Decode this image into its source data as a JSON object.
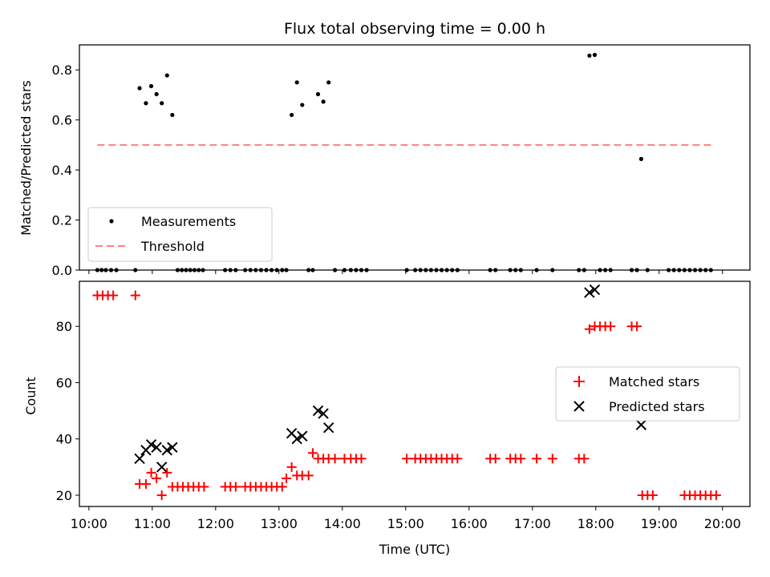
{
  "chart_data": [
    {
      "type": "scatter",
      "title": "Flux total observing time = 0.00 h",
      "ylabel": "Matched/Predicted stars",
      "ylim": [
        0,
        0.9
      ],
      "yticks": [
        "0.0",
        "0.2",
        "0.4",
        "0.6",
        "0.8"
      ],
      "xlim": [
        "09:51",
        "20:26"
      ],
      "legend": {
        "position": "lower-left",
        "entries": [
          "Measurements",
          "Threshold"
        ]
      },
      "grid": false,
      "threshold": {
        "name": "Threshold",
        "value": 0.5,
        "x_range": [
          "10:08",
          "19:53"
        ],
        "color": "#ff7f7f"
      },
      "series": [
        {
          "name": "Measurements",
          "color": "#000000",
          "points": [
            [
              "10:08",
              0
            ],
            [
              "10:12",
              0
            ],
            [
              "10:16",
              0
            ],
            [
              "10:21",
              0
            ],
            [
              "10:26",
              0
            ],
            [
              "10:44",
              0
            ],
            [
              "10:48",
              0.727
            ],
            [
              "10:54",
              0.667
            ],
            [
              "10:59",
              0.735
            ],
            [
              "11:04",
              0.703
            ],
            [
              "11:09",
              0.667
            ],
            [
              "11:14",
              0.778
            ],
            [
              "11:19",
              0.62
            ],
            [
              "11:24",
              0
            ],
            [
              "11:28",
              0
            ],
            [
              "11:32",
              0
            ],
            [
              "11:36",
              0
            ],
            [
              "11:40",
              0
            ],
            [
              "11:44",
              0
            ],
            [
              "11:48",
              0
            ],
            [
              "12:09",
              0
            ],
            [
              "12:14",
              0
            ],
            [
              "12:19",
              0
            ],
            [
              "12:28",
              0
            ],
            [
              "12:33",
              0
            ],
            [
              "12:38",
              0
            ],
            [
              "12:43",
              0
            ],
            [
              "12:48",
              0
            ],
            [
              "12:53",
              0
            ],
            [
              "12:58",
              0
            ],
            [
              "13:03",
              0
            ],
            [
              "13:07",
              0
            ],
            [
              "13:12",
              0.62
            ],
            [
              "13:17",
              0.75
            ],
            [
              "13:22",
              0.66
            ],
            [
              "13:28",
              0
            ],
            [
              "13:32",
              0
            ],
            [
              "13:37",
              0.703
            ],
            [
              "13:42",
              0.673
            ],
            [
              "13:47",
              0.75
            ],
            [
              "13:53",
              0
            ],
            [
              "14:02",
              0
            ],
            [
              "14:08",
              0
            ],
            [
              "14:13",
              0
            ],
            [
              "14:18",
              0
            ],
            [
              "14:23",
              0
            ],
            [
              "15:01",
              0
            ],
            [
              "15:09",
              0
            ],
            [
              "15:14",
              0
            ],
            [
              "15:19",
              0
            ],
            [
              "15:24",
              0
            ],
            [
              "15:29",
              0
            ],
            [
              "15:34",
              0
            ],
            [
              "15:39",
              0
            ],
            [
              "15:44",
              0
            ],
            [
              "15:49",
              0
            ],
            [
              "16:20",
              0
            ],
            [
              "16:25",
              0
            ],
            [
              "16:39",
              0
            ],
            [
              "16:44",
              0
            ],
            [
              "16:49",
              0
            ],
            [
              "17:04",
              0
            ],
            [
              "17:19",
              0
            ],
            [
              "17:44",
              0
            ],
            [
              "17:49",
              0
            ],
            [
              "17:54",
              0.857
            ],
            [
              "17:59",
              0.86
            ],
            [
              "18:04",
              0
            ],
            [
              "18:09",
              0
            ],
            [
              "18:14",
              0
            ],
            [
              "18:34",
              0
            ],
            [
              "18:39",
              0
            ],
            [
              "18:43",
              0.444
            ],
            [
              "18:49",
              0
            ],
            [
              "19:09",
              0
            ],
            [
              "19:14",
              0
            ],
            [
              "19:19",
              0
            ],
            [
              "19:24",
              0
            ],
            [
              "19:29",
              0
            ],
            [
              "19:34",
              0
            ],
            [
              "19:39",
              0
            ],
            [
              "19:44",
              0
            ],
            [
              "19:49",
              0
            ]
          ]
        }
      ]
    },
    {
      "type": "scatter",
      "xlabel": "Time (UTC)",
      "ylabel": "Count",
      "ylim": [
        16,
        96
      ],
      "yticks": [
        "20",
        "40",
        "60",
        "80"
      ],
      "xlim": [
        "09:51",
        "20:26"
      ],
      "xticks": [
        "10:00",
        "11:00",
        "12:00",
        "13:00",
        "14:00",
        "15:00",
        "16:00",
        "17:00",
        "18:00",
        "19:00",
        "20:00"
      ],
      "legend": {
        "position": "center-right",
        "entries": [
          "Matched stars",
          "Predicted stars"
        ]
      },
      "grid": false,
      "series": [
        {
          "name": "Matched stars",
          "color": "#ff0000",
          "marker": "+",
          "points": [
            [
              "10:08",
              91
            ],
            [
              "10:13",
              91
            ],
            [
              "10:18",
              91
            ],
            [
              "10:23",
              91
            ],
            [
              "10:44",
              91
            ],
            [
              "10:48",
              24
            ],
            [
              "10:54",
              24
            ],
            [
              "10:59",
              28
            ],
            [
              "11:04",
              26
            ],
            [
              "11:09",
              20
            ],
            [
              "11:14",
              28
            ],
            [
              "11:19",
              23
            ],
            [
              "11:24",
              23
            ],
            [
              "11:29",
              23
            ],
            [
              "11:34",
              23
            ],
            [
              "11:39",
              23
            ],
            [
              "11:44",
              23
            ],
            [
              "11:49",
              23
            ],
            [
              "12:09",
              23
            ],
            [
              "12:14",
              23
            ],
            [
              "12:19",
              23
            ],
            [
              "12:28",
              23
            ],
            [
              "12:33",
              23
            ],
            [
              "12:38",
              23
            ],
            [
              "12:43",
              23
            ],
            [
              "12:48",
              23
            ],
            [
              "12:53",
              23
            ],
            [
              "12:58",
              23
            ],
            [
              "13:03",
              23
            ],
            [
              "13:07",
              26
            ],
            [
              "13:12",
              30
            ],
            [
              "13:17",
              27
            ],
            [
              "13:22",
              27
            ],
            [
              "13:28",
              27
            ],
            [
              "13:32",
              35
            ],
            [
              "13:37",
              33
            ],
            [
              "13:42",
              33
            ],
            [
              "13:47",
              33
            ],
            [
              "13:53",
              33
            ],
            [
              "14:02",
              33
            ],
            [
              "14:08",
              33
            ],
            [
              "14:13",
              33
            ],
            [
              "14:18",
              33
            ],
            [
              "15:01",
              33
            ],
            [
              "15:09",
              33
            ],
            [
              "15:14",
              33
            ],
            [
              "15:19",
              33
            ],
            [
              "15:24",
              33
            ],
            [
              "15:29",
              33
            ],
            [
              "15:34",
              33
            ],
            [
              "15:39",
              33
            ],
            [
              "15:44",
              33
            ],
            [
              "15:49",
              33
            ],
            [
              "16:20",
              33
            ],
            [
              "16:25",
              33
            ],
            [
              "16:39",
              33
            ],
            [
              "16:44",
              33
            ],
            [
              "16:49",
              33
            ],
            [
              "17:04",
              33
            ],
            [
              "17:19",
              33
            ],
            [
              "17:44",
              33
            ],
            [
              "17:49",
              33
            ],
            [
              "17:54",
              79
            ],
            [
              "17:59",
              80
            ],
            [
              "18:04",
              80
            ],
            [
              "18:09",
              80
            ],
            [
              "18:14",
              80
            ],
            [
              "18:34",
              80
            ],
            [
              "18:39",
              80
            ],
            [
              "18:44",
              20
            ],
            [
              "18:49",
              20
            ],
            [
              "18:54",
              20
            ],
            [
              "19:24",
              20
            ],
            [
              "19:29",
              20
            ],
            [
              "19:34",
              20
            ],
            [
              "19:39",
              20
            ],
            [
              "19:44",
              20
            ],
            [
              "19:49",
              20
            ],
            [
              "19:54",
              20
            ]
          ]
        },
        {
          "name": "Predicted stars",
          "color": "#000000",
          "marker": "x",
          "points": [
            [
              "10:48",
              33
            ],
            [
              "10:54",
              36
            ],
            [
              "10:59",
              38
            ],
            [
              "11:04",
              37
            ],
            [
              "11:09",
              30
            ],
            [
              "11:14",
              36
            ],
            [
              "11:19",
              37
            ],
            [
              "13:12",
              42
            ],
            [
              "13:17",
              40
            ],
            [
              "13:22",
              41
            ],
            [
              "13:37",
              50
            ],
            [
              "13:42",
              49
            ],
            [
              "13:47",
              44
            ],
            [
              "17:54",
              92
            ],
            [
              "17:59",
              93
            ],
            [
              "18:43",
              45
            ]
          ]
        }
      ]
    }
  ]
}
